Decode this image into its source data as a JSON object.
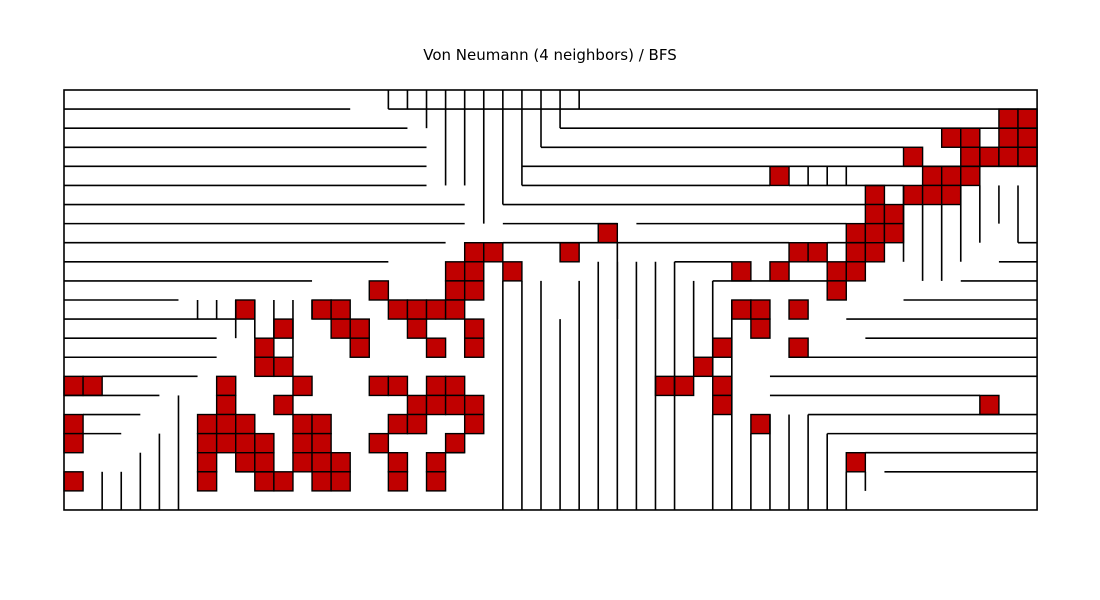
{
  "title": "Von Neumann (4 neighbors) / BFS",
  "colors": {
    "wall": "#000000",
    "visited_cell": "#c00000",
    "background": "#ffffff"
  },
  "grid": {
    "columns": 51,
    "rows": 22
  },
  "visited_cells": [
    [
      49,
      1
    ],
    [
      50,
      1
    ],
    [
      46,
      2
    ],
    [
      47,
      2
    ],
    [
      49,
      2
    ],
    [
      50,
      2
    ],
    [
      44,
      3
    ],
    [
      47,
      3
    ],
    [
      48,
      3
    ],
    [
      49,
      3
    ],
    [
      50,
      3
    ],
    [
      37,
      4
    ],
    [
      45,
      4
    ],
    [
      46,
      4
    ],
    [
      47,
      4
    ],
    [
      42,
      5
    ],
    [
      44,
      5
    ],
    [
      45,
      5
    ],
    [
      46,
      5
    ],
    [
      42,
      6
    ],
    [
      43,
      6
    ],
    [
      28,
      7
    ],
    [
      41,
      7
    ],
    [
      42,
      7
    ],
    [
      43,
      7
    ],
    [
      21,
      8
    ],
    [
      22,
      8
    ],
    [
      26,
      8
    ],
    [
      38,
      8
    ],
    [
      39,
      8
    ],
    [
      41,
      8
    ],
    [
      42,
      8
    ],
    [
      20,
      9
    ],
    [
      21,
      9
    ],
    [
      23,
      9
    ],
    [
      35,
      9
    ],
    [
      37,
      9
    ],
    [
      40,
      9
    ],
    [
      41,
      9
    ],
    [
      16,
      10
    ],
    [
      20,
      10
    ],
    [
      21,
      10
    ],
    [
      40,
      10
    ],
    [
      9,
      11
    ],
    [
      13,
      11
    ],
    [
      14,
      11
    ],
    [
      17,
      11
    ],
    [
      18,
      11
    ],
    [
      19,
      11
    ],
    [
      20,
      11
    ],
    [
      35,
      11
    ],
    [
      36,
      11
    ],
    [
      38,
      11
    ],
    [
      11,
      12
    ],
    [
      14,
      12
    ],
    [
      15,
      12
    ],
    [
      18,
      12
    ],
    [
      21,
      12
    ],
    [
      36,
      12
    ],
    [
      10,
      13
    ],
    [
      15,
      13
    ],
    [
      19,
      13
    ],
    [
      21,
      13
    ],
    [
      34,
      13
    ],
    [
      38,
      13
    ],
    [
      10,
      14
    ],
    [
      11,
      14
    ],
    [
      33,
      14
    ],
    [
      0,
      15
    ],
    [
      1,
      15
    ],
    [
      8,
      15
    ],
    [
      12,
      15
    ],
    [
      16,
      15
    ],
    [
      17,
      15
    ],
    [
      19,
      15
    ],
    [
      20,
      15
    ],
    [
      31,
      15
    ],
    [
      32,
      15
    ],
    [
      34,
      15
    ],
    [
      8,
      16
    ],
    [
      11,
      16
    ],
    [
      18,
      16
    ],
    [
      19,
      16
    ],
    [
      20,
      16
    ],
    [
      21,
      16
    ],
    [
      34,
      16
    ],
    [
      48,
      16
    ],
    [
      0,
      17
    ],
    [
      7,
      17
    ],
    [
      8,
      17
    ],
    [
      9,
      17
    ],
    [
      12,
      17
    ],
    [
      13,
      17
    ],
    [
      17,
      17
    ],
    [
      18,
      17
    ],
    [
      21,
      17
    ],
    [
      36,
      17
    ],
    [
      0,
      18
    ],
    [
      7,
      18
    ],
    [
      8,
      18
    ],
    [
      9,
      18
    ],
    [
      10,
      18
    ],
    [
      12,
      18
    ],
    [
      13,
      18
    ],
    [
      16,
      18
    ],
    [
      20,
      18
    ],
    [
      7,
      19
    ],
    [
      9,
      19
    ],
    [
      10,
      19
    ],
    [
      12,
      19
    ],
    [
      13,
      19
    ],
    [
      14,
      19
    ],
    [
      17,
      19
    ],
    [
      19,
      19
    ],
    [
      41,
      19
    ],
    [
      0,
      20
    ],
    [
      7,
      20
    ],
    [
      10,
      20
    ],
    [
      11,
      20
    ],
    [
      13,
      20
    ],
    [
      14,
      20
    ],
    [
      17,
      20
    ],
    [
      19,
      20
    ]
  ],
  "horizontal_walls": [
    [
      0,
      15,
      1
    ],
    [
      17,
      51,
      1
    ],
    [
      0,
      18,
      2
    ],
    [
      26,
      51,
      2
    ],
    [
      0,
      19,
      3
    ],
    [
      25,
      44,
      3
    ],
    [
      0,
      19,
      4
    ],
    [
      24,
      51,
      4
    ],
    [
      0,
      19,
      5
    ],
    [
      24,
      37,
      5
    ],
    [
      38,
      44,
      5
    ],
    [
      0,
      21,
      6
    ],
    [
      23,
      42,
      6
    ],
    [
      0,
      21,
      7
    ],
    [
      23,
      29,
      7
    ],
    [
      30,
      41,
      7
    ],
    [
      0,
      20,
      8
    ],
    [
      23,
      38,
      8
    ],
    [
      40,
      42,
      8
    ],
    [
      50,
      51,
      8
    ],
    [
      0,
      17,
      9
    ],
    [
      32,
      35,
      9
    ],
    [
      49,
      51,
      9
    ],
    [
      0,
      13,
      10
    ],
    [
      34,
      40,
      10
    ],
    [
      47,
      51,
      10
    ],
    [
      0,
      6,
      11
    ],
    [
      44,
      51,
      11
    ],
    [
      0,
      9,
      12
    ],
    [
      41,
      51,
      12
    ],
    [
      0,
      8,
      13
    ],
    [
      42,
      51,
      13
    ],
    [
      0,
      8,
      14
    ],
    [
      38,
      51,
      14
    ],
    [
      2,
      7,
      15
    ],
    [
      37,
      51,
      15
    ],
    [
      0,
      5,
      16
    ],
    [
      37,
      48,
      16
    ],
    [
      1,
      4,
      17
    ],
    [
      39,
      51,
      17
    ],
    [
      1,
      3,
      18
    ],
    [
      40,
      51,
      18
    ],
    [
      20,
      21,
      19
    ],
    [
      42,
      51,
      19
    ],
    [
      9,
      11,
      20
    ],
    [
      43,
      51,
      20
    ]
  ],
  "vertical_walls": [
    [
      17,
      0,
      1
    ],
    [
      18,
      0,
      1
    ],
    [
      19,
      0,
      2
    ],
    [
      20,
      0,
      5
    ],
    [
      21,
      0,
      5
    ],
    [
      22,
      0,
      7
    ],
    [
      23,
      0,
      6
    ],
    [
      24,
      0,
      5
    ],
    [
      25,
      0,
      3
    ],
    [
      26,
      0,
      2
    ],
    [
      27,
      0,
      1
    ],
    [
      39,
      4,
      5
    ],
    [
      40,
      4,
      5
    ],
    [
      41,
      4,
      5
    ],
    [
      44,
      5,
      9
    ],
    [
      45,
      6,
      10
    ],
    [
      46,
      6,
      10
    ],
    [
      47,
      5,
      9
    ],
    [
      48,
      5,
      8
    ],
    [
      49,
      5,
      7
    ],
    [
      50,
      5,
      8
    ],
    [
      7,
      11,
      12
    ],
    [
      8,
      11,
      12
    ],
    [
      9,
      11,
      13
    ],
    [
      10,
      11,
      13
    ],
    [
      11,
      11,
      13
    ],
    [
      12,
      11,
      14
    ],
    [
      13,
      11,
      12
    ],
    [
      23,
      10,
      22
    ],
    [
      24,
      10,
      22
    ],
    [
      25,
      10,
      22
    ],
    [
      26,
      12,
      22
    ],
    [
      27,
      10,
      22
    ],
    [
      28,
      9,
      22
    ],
    [
      29,
      9,
      22
    ],
    [
      30,
      9,
      22
    ],
    [
      31,
      9,
      22
    ],
    [
      32,
      9,
      22
    ],
    [
      33,
      10,
      14
    ],
    [
      34,
      10,
      15
    ],
    [
      35,
      11,
      17
    ],
    [
      2,
      20,
      22
    ],
    [
      3,
      20,
      22
    ],
    [
      4,
      19,
      22
    ],
    [
      5,
      18,
      22
    ],
    [
      6,
      16,
      22
    ],
    [
      34,
      17,
      22
    ],
    [
      35,
      17,
      22
    ],
    [
      36,
      18,
      22
    ],
    [
      37,
      17,
      22
    ],
    [
      38,
      17,
      22
    ],
    [
      39,
      17,
      22
    ],
    [
      40,
      18,
      22
    ],
    [
      41,
      20,
      22
    ],
    [
      42,
      20,
      21
    ],
    [
      29,
      8,
      12
    ]
  ]
}
